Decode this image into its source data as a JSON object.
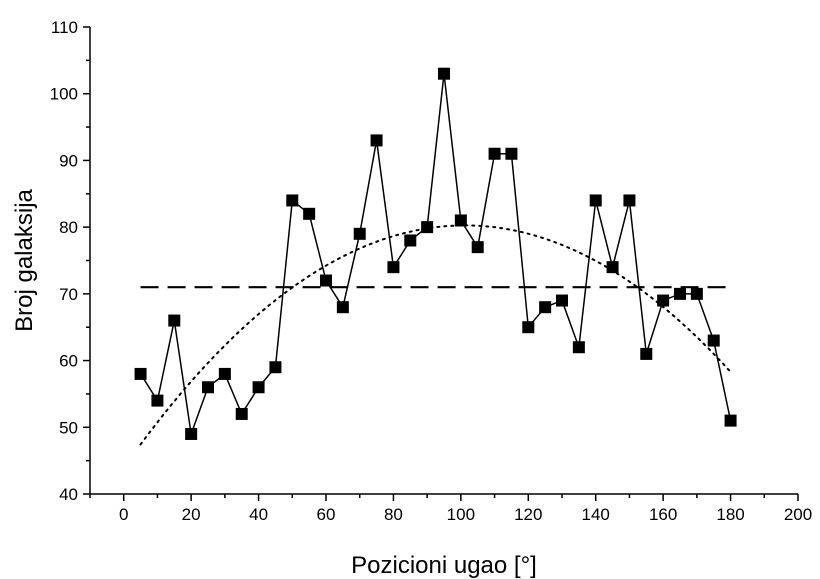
{
  "chart_data": {
    "type": "line",
    "title": "",
    "xlabel": "Pozicioni ugao [°]",
    "ylabel": "Broj galaksija",
    "xlim": [
      -10,
      200
    ],
    "ylim": [
      40,
      110
    ],
    "x_ticks": [
      0,
      20,
      40,
      60,
      80,
      100,
      120,
      140,
      160,
      180,
      200
    ],
    "y_ticks": [
      40,
      50,
      60,
      70,
      80,
      90,
      100,
      110
    ],
    "grid": false,
    "legend": "none",
    "series": [
      {
        "style": "line-with-square-markers",
        "color": "#000000",
        "x": [
          5,
          10,
          15,
          20,
          25,
          30,
          35,
          40,
          45,
          50,
          55,
          60,
          65,
          70,
          75,
          80,
          85,
          90,
          95,
          100,
          105,
          110,
          115,
          120,
          125,
          130,
          135,
          140,
          145,
          150,
          155,
          160,
          165,
          170,
          175,
          180
        ],
        "y": [
          58,
          54,
          66,
          49,
          56,
          58,
          52,
          56,
          59,
          84,
          82,
          72,
          68,
          79,
          93,
          74,
          78,
          80,
          103,
          81,
          77,
          91,
          91,
          65,
          68,
          69,
          62,
          84,
          74,
          84,
          61,
          69,
          70,
          70,
          63,
          51
        ]
      },
      {
        "style": "dashed",
        "color": "#000000",
        "x": [
          5,
          180
        ],
        "y": [
          71,
          71
        ]
      },
      {
        "style": "dotted",
        "color": "#000000",
        "fit": "quadratic",
        "x": [
          5,
          20,
          40,
          60,
          80,
          95,
          110,
          120,
          140,
          160,
          180
        ],
        "y": [
          48,
          56.6,
          66.5,
          73.8,
          78.6,
          80.6,
          80.3,
          79.3,
          74.8,
          67.8,
          58.3
        ]
      }
    ]
  }
}
